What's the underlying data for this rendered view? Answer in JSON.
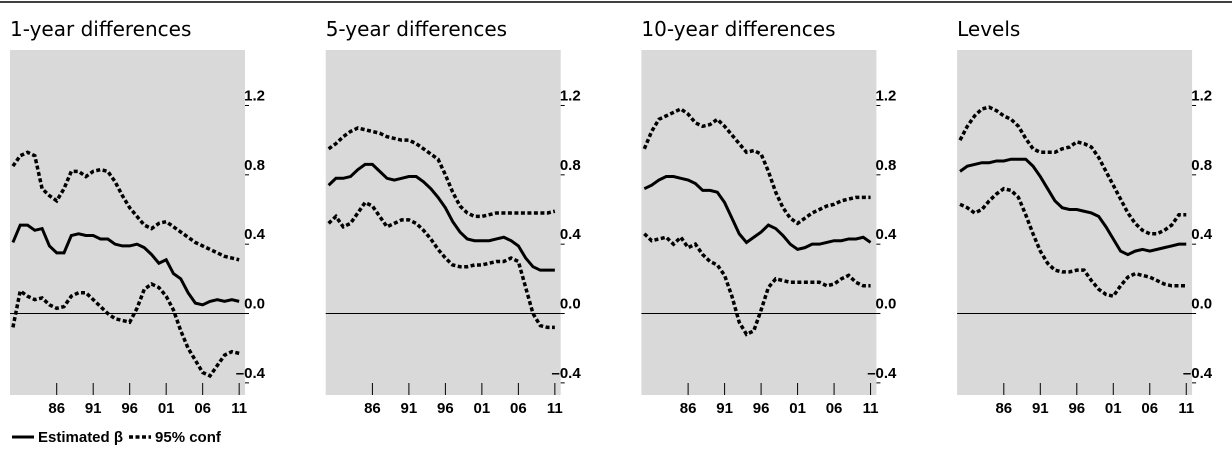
{
  "chart_data": [
    {
      "type": "line",
      "title": "1-year differences",
      "x": [
        1980,
        1981,
        1982,
        1983,
        1984,
        1985,
        1986,
        1987,
        1988,
        1989,
        1990,
        1991,
        1992,
        1993,
        1994,
        1995,
        1996,
        1997,
        1998,
        1999,
        2000,
        2001,
        2002,
        2003,
        2004,
        2005,
        2006,
        2007,
        2008,
        2009,
        2010,
        2011
      ],
      "xlim": [
        1979.6,
        2011.8
      ],
      "xticks": [
        {
          "value": 1986,
          "label": "86"
        },
        {
          "value": 1991,
          "label": "91"
        },
        {
          "value": 1996,
          "label": "96"
        },
        {
          "value": 2001,
          "label": "01"
        },
        {
          "value": 2006,
          "label": "06"
        },
        {
          "value": 2011,
          "label": "11"
        }
      ],
      "ylim": [
        -0.47,
        1.52
      ],
      "yticks": [
        1.2,
        0.8,
        0.4,
        {
          "value": 0,
          "label": "0.0"
        },
        {
          "value": -0.4,
          "label": "–0.4"
        }
      ],
      "zero_line": true,
      "background": "#d9d9d9",
      "series": [
        {
          "name": "Estimated β",
          "style": "solid",
          "color": "#000000",
          "values": [
            0.41,
            0.51,
            0.51,
            0.48,
            0.49,
            0.39,
            0.35,
            0.35,
            0.45,
            0.46,
            0.45,
            0.45,
            0.43,
            0.43,
            0.4,
            0.39,
            0.39,
            0.4,
            0.38,
            0.34,
            0.29,
            0.31,
            0.23,
            0.2,
            0.12,
            0.06,
            0.05,
            0.07,
            0.08,
            0.07,
            0.08,
            0.07
          ]
        },
        {
          "name": "95% conf",
          "style": "dotted",
          "color": "#000000",
          "values": [
            0.85,
            0.91,
            0.93,
            0.91,
            0.72,
            0.68,
            0.65,
            0.72,
            0.82,
            0.82,
            0.79,
            0.82,
            0.83,
            0.82,
            0.76,
            0.68,
            0.61,
            0.56,
            0.51,
            0.49,
            0.52,
            0.53,
            0.5,
            0.47,
            0.44,
            0.41,
            0.39,
            0.37,
            0.35,
            0.33,
            0.32,
            0.31
          ]
        },
        {
          "name": "95% conf",
          "style": "dotted",
          "color": "#000000",
          "values": [
            -0.08,
            0.13,
            0.1,
            0.08,
            0.09,
            0.05,
            0.03,
            0.04,
            0.1,
            0.12,
            0.12,
            0.08,
            0.04,
            0.0,
            -0.03,
            -0.04,
            -0.05,
            0.03,
            0.14,
            0.17,
            0.15,
            0.1,
            0.02,
            -0.1,
            -0.2,
            -0.27,
            -0.34,
            -0.36,
            -0.3,
            -0.24,
            -0.22,
            -0.23
          ]
        }
      ]
    },
    {
      "type": "line",
      "title": "5-year differences",
      "x": [
        1980,
        1981,
        1982,
        1983,
        1984,
        1985,
        1986,
        1987,
        1988,
        1989,
        1990,
        1991,
        1992,
        1993,
        1994,
        1995,
        1996,
        1997,
        1998,
        1999,
        2000,
        2001,
        2002,
        2003,
        2004,
        2005,
        2006,
        2007,
        2008,
        2009,
        2010,
        2011
      ],
      "xlim": [
        1979.6,
        2011.8
      ],
      "xticks": [
        {
          "value": 1986,
          "label": "86"
        },
        {
          "value": 1991,
          "label": "91"
        },
        {
          "value": 1996,
          "label": "96"
        },
        {
          "value": 2001,
          "label": "01"
        },
        {
          "value": 2006,
          "label": "06"
        },
        {
          "value": 2011,
          "label": "11"
        }
      ],
      "ylim": [
        -0.47,
        1.52
      ],
      "yticks": [
        1.2,
        0.8,
        0.4,
        {
          "value": 0,
          "label": "0.0"
        },
        {
          "value": -0.4,
          "label": "–0.4"
        }
      ],
      "zero_line": true,
      "background": "#d9d9d9",
      "series": [
        {
          "name": "Estimated β",
          "style": "solid",
          "color": "#000000",
          "values": [
            0.74,
            0.78,
            0.78,
            0.79,
            0.83,
            0.86,
            0.86,
            0.82,
            0.78,
            0.77,
            0.78,
            0.79,
            0.79,
            0.76,
            0.72,
            0.67,
            0.61,
            0.53,
            0.47,
            0.43,
            0.42,
            0.42,
            0.42,
            0.43,
            0.44,
            0.42,
            0.39,
            0.32,
            0.27,
            0.25,
            0.25,
            0.25
          ]
        },
        {
          "name": "95% conf",
          "style": "dotted",
          "color": "#000000",
          "values": [
            0.95,
            0.98,
            1.02,
            1.05,
            1.07,
            1.06,
            1.05,
            1.04,
            1.02,
            1.01,
            1.0,
            1.0,
            0.98,
            0.95,
            0.92,
            0.89,
            0.8,
            0.7,
            0.62,
            0.58,
            0.56,
            0.56,
            0.57,
            0.58,
            0.58,
            0.58,
            0.58,
            0.58,
            0.58,
            0.58,
            0.58,
            0.59
          ]
        },
        {
          "name": "95% conf",
          "style": "dotted",
          "color": "#000000",
          "values": [
            0.52,
            0.56,
            0.5,
            0.52,
            0.58,
            0.64,
            0.62,
            0.56,
            0.5,
            0.52,
            0.54,
            0.54,
            0.52,
            0.48,
            0.43,
            0.37,
            0.32,
            0.28,
            0.27,
            0.27,
            0.28,
            0.28,
            0.29,
            0.3,
            0.3,
            0.32,
            0.3,
            0.15,
            0.0,
            -0.07,
            -0.08,
            -0.08
          ]
        }
      ]
    },
    {
      "type": "line",
      "title": "10-year differences",
      "x": [
        1980,
        1981,
        1982,
        1983,
        1984,
        1985,
        1986,
        1987,
        1988,
        1989,
        1990,
        1991,
        1992,
        1993,
        1994,
        1995,
        1996,
        1997,
        1998,
        1999,
        2000,
        2001,
        2002,
        2003,
        2004,
        2005,
        2006,
        2007,
        2008,
        2009,
        2010,
        2011
      ],
      "xlim": [
        1979.6,
        2011.8
      ],
      "xticks": [
        {
          "value": 1986,
          "label": "86"
        },
        {
          "value": 1991,
          "label": "91"
        },
        {
          "value": 1996,
          "label": "96"
        },
        {
          "value": 2001,
          "label": "01"
        },
        {
          "value": 2006,
          "label": "06"
        },
        {
          "value": 2011,
          "label": "11"
        }
      ],
      "ylim": [
        -0.47,
        1.52
      ],
      "yticks": [
        1.2,
        0.8,
        0.4,
        {
          "value": 0,
          "label": "0.0"
        },
        {
          "value": -0.4,
          "label": "–0.4"
        }
      ],
      "zero_line": true,
      "background": "#d9d9d9",
      "series": [
        {
          "name": "Estimated β",
          "style": "solid",
          "color": "#000000",
          "values": [
            0.72,
            0.74,
            0.77,
            0.79,
            0.79,
            0.78,
            0.77,
            0.75,
            0.71,
            0.71,
            0.7,
            0.64,
            0.55,
            0.46,
            0.41,
            0.44,
            0.47,
            0.51,
            0.49,
            0.45,
            0.4,
            0.37,
            0.38,
            0.4,
            0.4,
            0.41,
            0.42,
            0.42,
            0.43,
            0.43,
            0.44,
            0.41
          ]
        },
        {
          "name": "95% conf",
          "style": "dotted",
          "color": "#000000",
          "values": [
            0.95,
            1.05,
            1.12,
            1.14,
            1.16,
            1.18,
            1.15,
            1.1,
            1.08,
            1.09,
            1.12,
            1.08,
            1.03,
            0.98,
            0.93,
            0.94,
            0.92,
            0.82,
            0.7,
            0.61,
            0.55,
            0.52,
            0.55,
            0.58,
            0.6,
            0.62,
            0.63,
            0.65,
            0.66,
            0.67,
            0.67,
            0.67
          ]
        },
        {
          "name": "95% conf",
          "style": "dotted",
          "color": "#000000",
          "values": [
            0.46,
            0.42,
            0.43,
            0.44,
            0.4,
            0.44,
            0.38,
            0.4,
            0.34,
            0.3,
            0.28,
            0.22,
            0.1,
            -0.05,
            -0.12,
            -0.1,
            0.02,
            0.15,
            0.2,
            0.19,
            0.18,
            0.18,
            0.18,
            0.18,
            0.18,
            0.16,
            0.17,
            0.2,
            0.22,
            0.18,
            0.16,
            0.16
          ]
        }
      ]
    },
    {
      "type": "line",
      "title": "Levels",
      "x": [
        1980,
        1981,
        1982,
        1983,
        1984,
        1985,
        1986,
        1987,
        1988,
        1989,
        1990,
        1991,
        1992,
        1993,
        1994,
        1995,
        1996,
        1997,
        1998,
        1999,
        2000,
        2001,
        2002,
        2003,
        2004,
        2005,
        2006,
        2007,
        2008,
        2009,
        2010,
        2011
      ],
      "xlim": [
        1979.6,
        2011.8
      ],
      "xticks": [
        {
          "value": 1986,
          "label": "86"
        },
        {
          "value": 1991,
          "label": "91"
        },
        {
          "value": 1996,
          "label": "96"
        },
        {
          "value": 2001,
          "label": "01"
        },
        {
          "value": 2006,
          "label": "06"
        },
        {
          "value": 2011,
          "label": "11"
        }
      ],
      "ylim": [
        -0.47,
        1.52
      ],
      "yticks": [
        1.2,
        0.8,
        0.4,
        {
          "value": 0,
          "label": "0.0"
        },
        {
          "value": -0.4,
          "label": "–0.4"
        }
      ],
      "zero_line": true,
      "background": "#d9d9d9",
      "series": [
        {
          "name": "Estimated β",
          "style": "solid",
          "color": "#000000",
          "values": [
            0.82,
            0.85,
            0.86,
            0.87,
            0.87,
            0.88,
            0.88,
            0.89,
            0.89,
            0.89,
            0.85,
            0.79,
            0.72,
            0.65,
            0.61,
            0.6,
            0.6,
            0.59,
            0.58,
            0.56,
            0.5,
            0.43,
            0.36,
            0.34,
            0.36,
            0.37,
            0.36,
            0.37,
            0.38,
            0.39,
            0.4,
            0.4
          ]
        },
        {
          "name": "95% conf",
          "style": "dotted",
          "color": "#000000",
          "values": [
            1.0,
            1.08,
            1.14,
            1.18,
            1.19,
            1.17,
            1.14,
            1.12,
            1.08,
            1.01,
            0.95,
            0.93,
            0.93,
            0.93,
            0.95,
            0.96,
            0.99,
            0.98,
            0.96,
            0.9,
            0.82,
            0.74,
            0.66,
            0.58,
            0.52,
            0.48,
            0.46,
            0.46,
            0.48,
            0.51,
            0.57,
            0.57
          ]
        },
        {
          "name": "95% conf",
          "style": "dotted",
          "color": "#000000",
          "values": [
            0.63,
            0.61,
            0.58,
            0.6,
            0.65,
            0.69,
            0.72,
            0.71,
            0.67,
            0.57,
            0.46,
            0.36,
            0.29,
            0.25,
            0.24,
            0.24,
            0.25,
            0.25,
            0.19,
            0.14,
            0.11,
            0.1,
            0.16,
            0.21,
            0.23,
            0.22,
            0.21,
            0.19,
            0.17,
            0.16,
            0.16,
            0.16
          ]
        }
      ]
    }
  ]
}
